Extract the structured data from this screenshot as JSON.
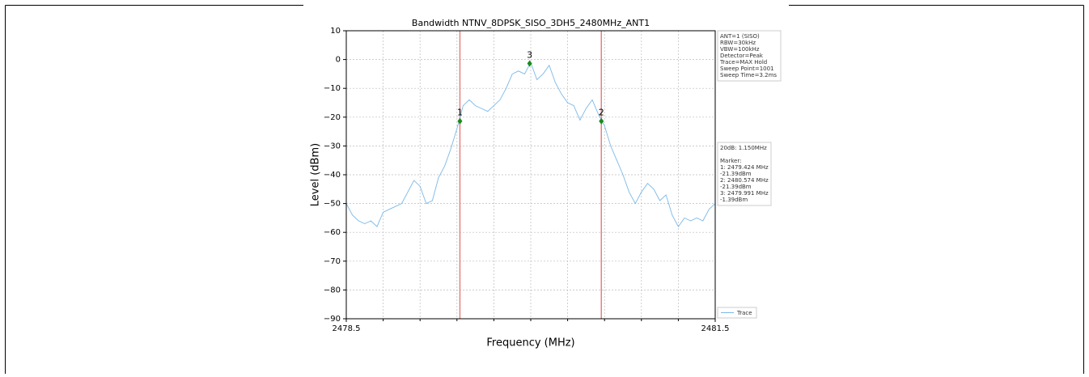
{
  "chart_data": {
    "type": "line",
    "title": "Bandwidth NTNV_8DPSK_SISO_3DH5_2480MHz_ANT1",
    "x_label": "Frequency (MHz)",
    "y_label": "Level (dBm)",
    "xlim": [
      2478.5,
      2481.5
    ],
    "xticks": [
      2478.5,
      2481.5
    ],
    "xgrid": [
      2478.8,
      2479.1,
      2479.4,
      2479.7,
      2480.0,
      2480.3,
      2480.6,
      2480.9,
      2481.2
    ],
    "ylim": [
      -90,
      10
    ],
    "yticks": [
      10,
      0,
      {
        "value": -10,
        "label": "−10"
      },
      {
        "value": -20,
        "label": "−20"
      },
      {
        "value": -30,
        "label": "−30"
      },
      {
        "value": -40,
        "label": "−40"
      },
      {
        "value": -50,
        "label": "−50"
      },
      {
        "value": -60,
        "label": "−60"
      },
      {
        "value": -70,
        "label": "−70"
      },
      {
        "value": -80,
        "label": "−80"
      },
      {
        "value": -90,
        "label": "−90"
      }
    ],
    "grid": true,
    "x": [
      2478.5,
      2478.55,
      2478.6,
      2478.65,
      2478.7,
      2478.75,
      2478.8,
      2478.85,
      2478.9,
      2478.95,
      2479.0,
      2479.05,
      2479.1,
      2479.15,
      2479.2,
      2479.25,
      2479.3,
      2479.35,
      2479.4,
      2479.45,
      2479.5,
      2479.55,
      2479.6,
      2479.65,
      2479.7,
      2479.75,
      2479.8,
      2479.85,
      2479.9,
      2479.95,
      2480.0,
      2480.05,
      2480.1,
      2480.15,
      2480.2,
      2480.25,
      2480.3,
      2480.35,
      2480.4,
      2480.45,
      2480.5,
      2480.55,
      2480.6,
      2480.65,
      2480.7,
      2480.75,
      2480.8,
      2480.85,
      2480.9,
      2480.95,
      2481.0,
      2481.05,
      2481.1,
      2481.15,
      2481.2,
      2481.25,
      2481.3,
      2481.35,
      2481.4,
      2481.45,
      2481.5
    ],
    "series": [
      {
        "name": "Trace",
        "color": "#7ab8e8",
        "values": [
          -50,
          -54,
          -56,
          -57,
          -56,
          -58,
          -53,
          -52,
          -51,
          -50,
          -46,
          -42,
          -44,
          -50,
          -49,
          -41,
          -37,
          -31,
          -24,
          -16,
          -14,
          -16,
          -17,
          -18,
          -16,
          -14,
          -10,
          -5,
          -4,
          -5,
          -1,
          -7,
          -5,
          -2,
          -8,
          -12,
          -15,
          -16,
          -21,
          -17,
          -14,
          -19,
          -23,
          -30,
          -35,
          -40,
          -46,
          -50,
          -46,
          -43,
          -45,
          -49,
          -47,
          -54,
          -58,
          -55,
          -56,
          -55,
          -56,
          -52,
          -50
        ]
      }
    ],
    "markers": [
      {
        "label": "1",
        "x": 2479.424,
        "y": -21.39
      },
      {
        "label": "2",
        "x": 2480.574,
        "y": -21.39
      },
      {
        "label": "3",
        "x": 2479.991,
        "y": -1.39
      }
    ],
    "marker_color": "#1a8a1a",
    "line_color": "#e88080",
    "settings_box": [
      "ANT=1 (SISO)",
      "RBW=30kHz",
      "VBW=100kHz",
      "Detector=Peak",
      "Trace=MAX Hold",
      "Sweep Point=1001",
      "Sweep Time=3.2ms"
    ],
    "result_box": [
      "20dB: 1.150MHz",
      "",
      "Marker:",
      "1: 2479.424 MHz",
      "    -21.39dBm",
      "2: 2480.574 MHz",
      "    -21.39dBm",
      "3: 2479.991 MHz",
      "    -1.39dBm"
    ],
    "legend": "lower right"
  }
}
